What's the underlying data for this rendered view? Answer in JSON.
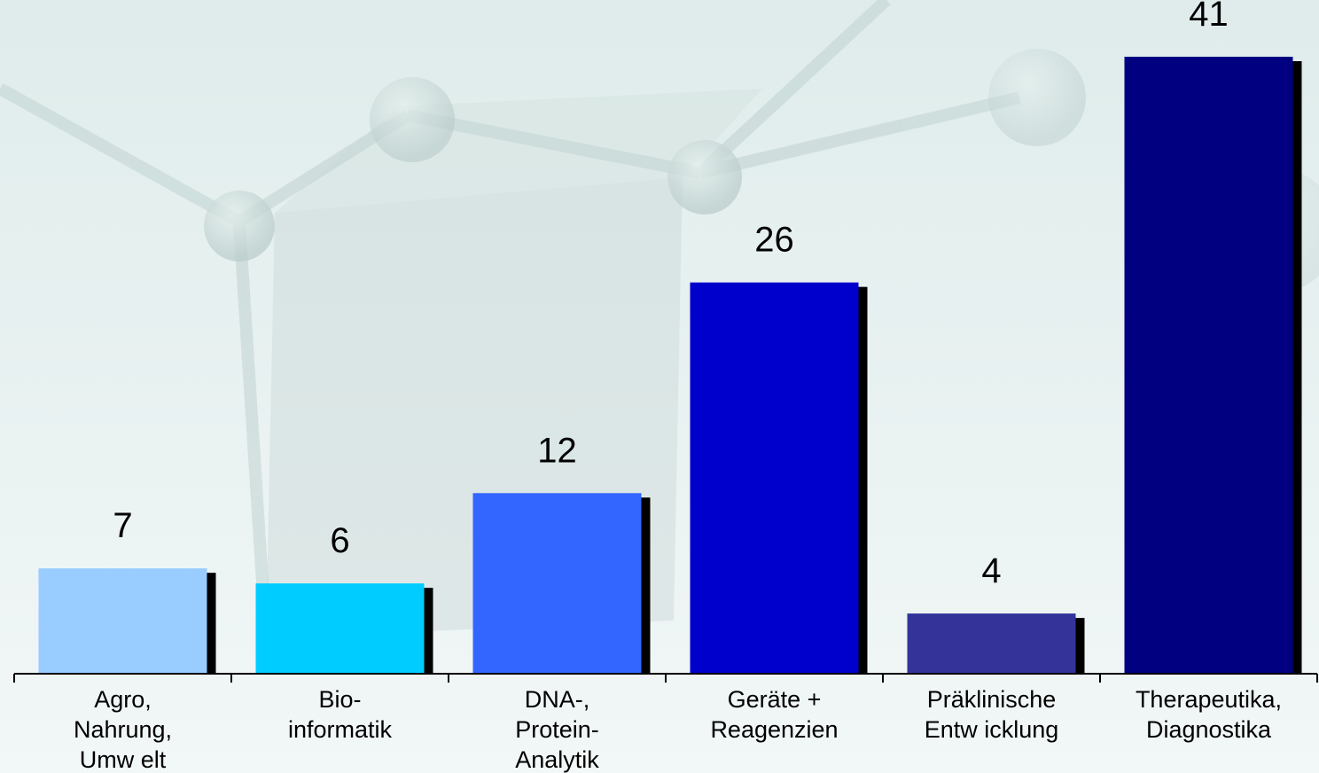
{
  "chart_data": {
    "type": "bar",
    "title": "",
    "xlabel": "",
    "ylabel": "",
    "categories": [
      [
        "Agro,",
        "Nahrung,",
        "Umw elt"
      ],
      [
        "Bio-",
        "informatik"
      ],
      [
        "DNA-,",
        "Protein-",
        "Analytik"
      ],
      [
        "Geräte +",
        "Reagenzien"
      ],
      [
        "Präklinische",
        "Entw icklung"
      ],
      [
        "Therapeutika,",
        "Diagnostika"
      ]
    ],
    "values": [
      7,
      6,
      12,
      26,
      4,
      41
    ],
    "value_labels": [
      "7",
      "6",
      "12",
      "26",
      "4",
      "41"
    ],
    "colors": [
      "#99ccff",
      "#00ccff",
      "#3366ff",
      "#0000cc",
      "#333399",
      "#000080"
    ],
    "ylim": [
      0,
      41
    ],
    "grid": false,
    "legend": "none"
  }
}
